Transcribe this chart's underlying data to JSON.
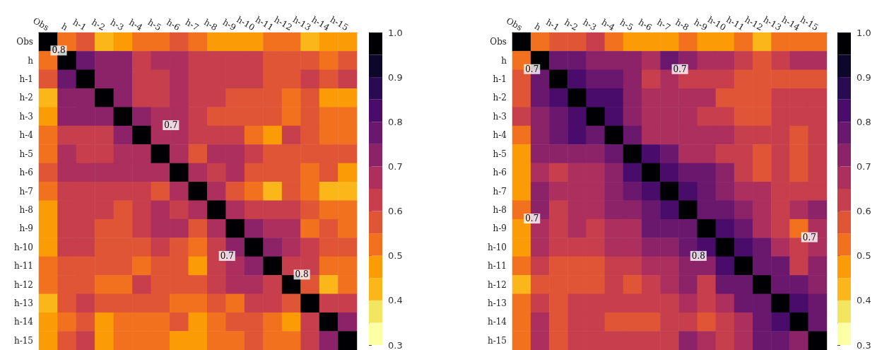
{
  "chart_data": [
    {
      "type": "heatmap",
      "categories": [
        "Obs",
        "h",
        "h-1",
        "h-2",
        "h-3",
        "h-4",
        "h-5",
        "h-6",
        "h-7",
        "h-8",
        "h-9",
        "h-10",
        "h-11",
        "h-12",
        "h-13",
        "h-14",
        "h-15"
      ],
      "y_categories": [
        "Obs",
        "h",
        "h-1",
        "h-2",
        "h-3",
        "h-4",
        "h-5",
        "h-6",
        "h-7",
        "h-8",
        "h-9",
        "h-10",
        "h-11",
        "h-12",
        "h-13",
        "h-14",
        "h-15"
      ],
      "cells": [
        [
          1,
          0.53,
          0.58,
          0.43,
          0.48,
          0.53,
          0.53,
          0.58,
          0.53,
          0.48,
          0.48,
          0.48,
          0.53,
          0.53,
          0.43,
          0.48,
          0.48
        ],
        [
          0.53,
          1,
          0.78,
          0.73,
          0.73,
          0.63,
          0.68,
          0.68,
          0.63,
          0.63,
          0.63,
          0.63,
          0.58,
          0.58,
          0.58,
          0.53,
          0.58
        ],
        [
          0.58,
          0.78,
          1,
          0.73,
          0.73,
          0.63,
          0.63,
          0.68,
          0.63,
          0.63,
          0.63,
          0.63,
          0.58,
          0.58,
          0.63,
          0.58,
          0.63
        ],
        [
          0.43,
          0.73,
          0.73,
          1,
          0.73,
          0.63,
          0.63,
          0.68,
          0.63,
          0.63,
          0.58,
          0.58,
          0.58,
          0.53,
          0.58,
          0.48,
          0.48
        ],
        [
          0.48,
          0.73,
          0.73,
          0.73,
          1,
          0.73,
          0.68,
          0.68,
          0.63,
          0.58,
          0.58,
          0.58,
          0.58,
          0.53,
          0.58,
          0.53,
          0.53
        ],
        [
          0.53,
          0.63,
          0.63,
          0.63,
          0.73,
          1,
          0.68,
          0.68,
          0.63,
          0.63,
          0.63,
          0.53,
          0.48,
          0.63,
          0.58,
          0.53,
          0.53
        ],
        [
          0.53,
          0.68,
          0.63,
          0.63,
          0.68,
          0.68,
          1,
          0.68,
          0.58,
          0.68,
          0.68,
          0.63,
          0.58,
          0.58,
          0.58,
          0.58,
          0.58
        ],
        [
          0.58,
          0.68,
          0.68,
          0.68,
          0.68,
          0.68,
          0.68,
          1,
          0.68,
          0.63,
          0.68,
          0.58,
          0.58,
          0.58,
          0.53,
          0.58,
          0.48
        ],
        [
          0.53,
          0.63,
          0.63,
          0.63,
          0.63,
          0.63,
          0.58,
          0.68,
          1,
          0.68,
          0.58,
          0.53,
          0.43,
          0.58,
          0.53,
          0.43,
          0.43
        ],
        [
          0.48,
          0.63,
          0.63,
          0.63,
          0.58,
          0.63,
          0.68,
          0.63,
          0.68,
          1,
          0.68,
          0.63,
          0.63,
          0.63,
          0.58,
          0.53,
          0.53
        ],
        [
          0.48,
          0.63,
          0.63,
          0.58,
          0.58,
          0.63,
          0.68,
          0.68,
          0.58,
          0.68,
          1,
          0.73,
          0.68,
          0.68,
          0.53,
          0.58,
          0.53
        ],
        [
          0.48,
          0.63,
          0.63,
          0.58,
          0.58,
          0.58,
          0.63,
          0.58,
          0.53,
          0.63,
          0.73,
          1,
          0.73,
          0.68,
          0.63,
          0.58,
          0.58
        ],
        [
          0.53,
          0.58,
          0.58,
          0.58,
          0.58,
          0.53,
          0.58,
          0.58,
          0.48,
          0.63,
          0.68,
          0.73,
          1,
          0.63,
          0.63,
          0.53,
          0.53
        ],
        [
          0.53,
          0.58,
          0.58,
          0.53,
          0.53,
          0.63,
          0.58,
          0.58,
          0.58,
          0.63,
          0.68,
          0.68,
          0.63,
          1,
          0.58,
          0.43,
          0.53
        ],
        [
          0.43,
          0.58,
          0.63,
          0.58,
          0.58,
          0.58,
          0.58,
          0.53,
          0.53,
          0.58,
          0.53,
          0.63,
          0.63,
          0.58,
          1,
          0.63,
          0.63
        ],
        [
          0.48,
          0.53,
          0.58,
          0.48,
          0.53,
          0.53,
          0.53,
          0.58,
          0.48,
          0.53,
          0.58,
          0.58,
          0.53,
          0.48,
          0.63,
          1,
          0.73
        ],
        [
          0.48,
          0.58,
          0.63,
          0.48,
          0.53,
          0.53,
          0.53,
          0.48,
          0.48,
          0.53,
          0.53,
          0.58,
          0.53,
          0.53,
          0.63,
          0.73,
          1
        ]
      ],
      "clim": [
        0.3,
        1.0
      ],
      "cticks": [
        0.3,
        0.4,
        0.5,
        0.6,
        0.7,
        0.8,
        0.9,
        {
          "value": 1.0,
          "label": "1.0"
        }
      ],
      "annotations": [
        "0.8",
        "0.7",
        "0.7",
        "0.8"
      ]
    },
    {
      "type": "heatmap",
      "categories": [
        "Obs",
        "h",
        "h-1",
        "h-2",
        "h-3",
        "h-4",
        "h-5",
        "h-6",
        "h-7",
        "h-8",
        "h-9",
        "h-10",
        "h-11",
        "h-12",
        "h-13",
        "h-14",
        "h-15"
      ],
      "y_categories": [
        "Obs",
        "h",
        "h-1",
        "h-2",
        "h-3",
        "h-4",
        "h-5",
        "h-6",
        "h-7",
        "h-8",
        "h-9",
        "h-10",
        "h-11",
        "h-12",
        "h-13",
        "h-14",
        "h-15"
      ],
      "cells": [
        [
          1,
          0.53,
          0.58,
          0.58,
          0.63,
          0.53,
          0.48,
          0.48,
          0.48,
          0.53,
          0.48,
          0.48,
          0.53,
          0.43,
          0.53,
          0.53,
          0.53
        ],
        [
          0.53,
          1,
          0.78,
          0.78,
          0.73,
          0.73,
          0.73,
          0.68,
          0.78,
          0.73,
          0.68,
          0.68,
          0.63,
          0.58,
          0.63,
          0.68,
          0.68
        ],
        [
          0.58,
          0.78,
          1,
          0.83,
          0.78,
          0.78,
          0.73,
          0.63,
          0.68,
          0.63,
          0.63,
          0.63,
          0.58,
          0.58,
          0.58,
          0.58,
          0.58
        ],
        [
          0.58,
          0.78,
          0.83,
          1,
          0.83,
          0.83,
          0.73,
          0.68,
          0.68,
          0.68,
          0.68,
          0.58,
          0.58,
          0.58,
          0.63,
          0.63,
          0.63
        ],
        [
          0.63,
          0.73,
          0.78,
          0.83,
          1,
          0.83,
          0.73,
          0.68,
          0.68,
          0.68,
          0.63,
          0.63,
          0.58,
          0.58,
          0.63,
          0.63,
          0.63
        ],
        [
          0.53,
          0.73,
          0.78,
          0.83,
          0.78,
          1,
          0.78,
          0.68,
          0.68,
          0.68,
          0.68,
          0.68,
          0.63,
          0.63,
          0.63,
          0.58,
          0.63
        ],
        [
          0.48,
          0.73,
          0.73,
          0.73,
          0.73,
          0.78,
          1,
          0.83,
          0.78,
          0.68,
          0.68,
          0.63,
          0.63,
          0.58,
          0.63,
          0.58,
          0.63
        ],
        [
          0.48,
          0.68,
          0.63,
          0.68,
          0.68,
          0.73,
          0.83,
          1,
          0.83,
          0.78,
          0.78,
          0.73,
          0.63,
          0.58,
          0.63,
          0.58,
          0.63
        ],
        [
          0.48,
          0.73,
          0.68,
          0.68,
          0.68,
          0.73,
          0.78,
          0.83,
          1,
          0.83,
          0.78,
          0.73,
          0.68,
          0.68,
          0.63,
          0.63,
          0.63
        ],
        [
          0.53,
          0.73,
          0.63,
          0.68,
          0.68,
          0.73,
          0.73,
          0.78,
          0.83,
          1,
          0.78,
          0.78,
          0.73,
          0.68,
          0.63,
          0.68,
          0.73
        ],
        [
          0.48,
          0.68,
          0.63,
          0.68,
          0.63,
          0.68,
          0.68,
          0.78,
          0.78,
          0.78,
          1,
          0.83,
          0.78,
          0.68,
          0.63,
          0.53,
          0.68
        ],
        [
          0.48,
          0.68,
          0.63,
          0.63,
          0.63,
          0.68,
          0.68,
          0.73,
          0.73,
          0.78,
          0.83,
          1,
          0.83,
          0.78,
          0.68,
          0.63,
          0.68
        ],
        [
          0.53,
          0.63,
          0.58,
          0.58,
          0.58,
          0.63,
          0.63,
          0.68,
          0.68,
          0.73,
          0.73,
          0.83,
          1,
          0.78,
          0.78,
          0.63,
          0.73
        ],
        [
          0.43,
          0.58,
          0.58,
          0.58,
          0.58,
          0.63,
          0.58,
          0.63,
          0.68,
          0.73,
          0.63,
          0.78,
          0.78,
          1,
          0.78,
          0.78,
          0.73
        ],
        [
          0.53,
          0.63,
          0.58,
          0.63,
          0.63,
          0.63,
          0.63,
          0.63,
          0.63,
          0.68,
          0.63,
          0.68,
          0.78,
          0.78,
          1,
          0.83,
          0.78
        ],
        [
          0.53,
          0.68,
          0.58,
          0.63,
          0.63,
          0.58,
          0.58,
          0.58,
          0.63,
          0.63,
          0.58,
          0.63,
          0.68,
          0.78,
          0.83,
          1,
          0.78
        ],
        [
          0.53,
          0.68,
          0.58,
          0.63,
          0.63,
          0.63,
          0.63,
          0.63,
          0.63,
          0.73,
          0.68,
          0.63,
          0.68,
          0.78,
          0.78,
          0.73,
          1
        ]
      ],
      "clim": [
        0.3,
        1.0
      ],
      "cticks": [
        0.3,
        0.4,
        0.5,
        0.6,
        0.7,
        0.8,
        0.9,
        {
          "value": 1.0,
          "label": "1.0"
        }
      ],
      "annotations": [
        "0.7",
        "0.7",
        "0.7",
        "0.8",
        "0.7"
      ]
    }
  ]
}
